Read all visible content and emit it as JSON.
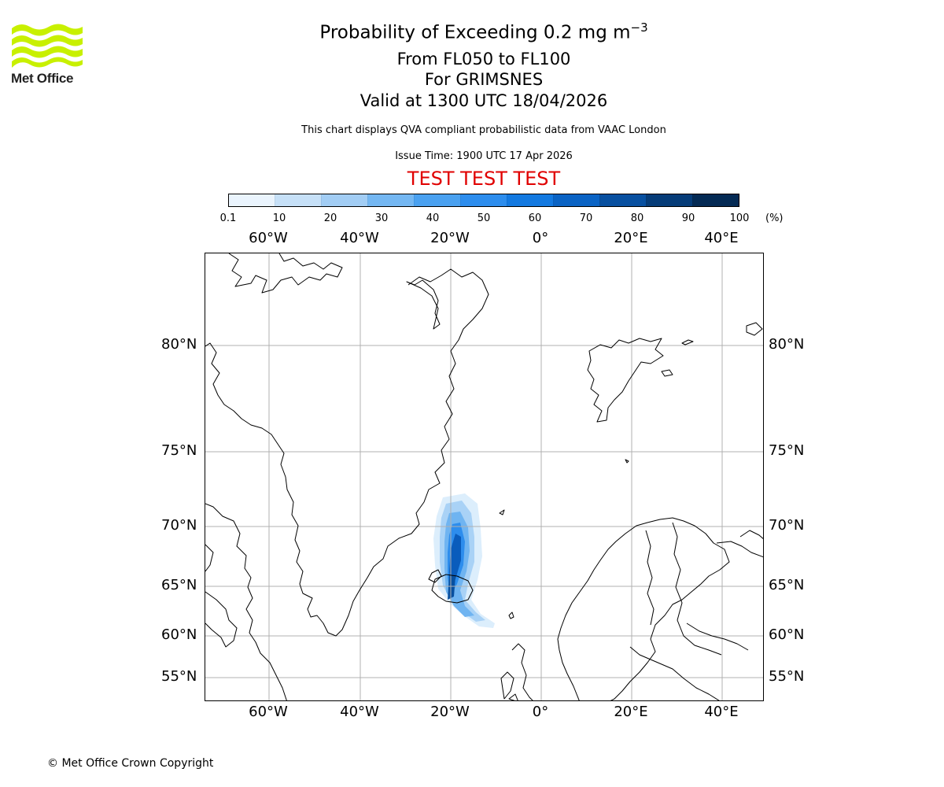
{
  "header": {
    "logo_text": "Met Office",
    "title_prefix": "Probability of Exceeding 0.2 mg m",
    "title_exponent": "−3",
    "level_range": "From FL050 to FL100",
    "location": "For GRIMSNES",
    "valid_time": "Valid at 1300 UTC 18/04/2026",
    "description": "This chart displays QVA compliant probabilistic data from VAAC London",
    "issue_time": "Issue Time: 1900 UTC 17 Apr 2026",
    "test_banner": "TEST TEST TEST"
  },
  "colorbar": {
    "ticks": [
      "0.1",
      "10",
      "20",
      "30",
      "40",
      "50",
      "60",
      "70",
      "80",
      "90",
      "100"
    ],
    "unit": "(%)",
    "colors": [
      "#eaf4fd",
      "#c6e0f7",
      "#a2cdf4",
      "#74b7f2",
      "#4aa1f0",
      "#2d8ded",
      "#1379e0",
      "#0a63c4",
      "#0850a0",
      "#063c78",
      "#042a54"
    ]
  },
  "map": {
    "lon_labels": [
      "60°W",
      "40°W",
      "20°W",
      "0°",
      "20°E",
      "40°E"
    ],
    "lat_labels": [
      "80°N",
      "75°N",
      "70°N",
      "65°N",
      "60°N",
      "55°N"
    ],
    "gridline_color": "#b0b0b0",
    "coast_color": "#000000"
  },
  "footer": {
    "copyright": "© Met Office Crown Copyright"
  }
}
